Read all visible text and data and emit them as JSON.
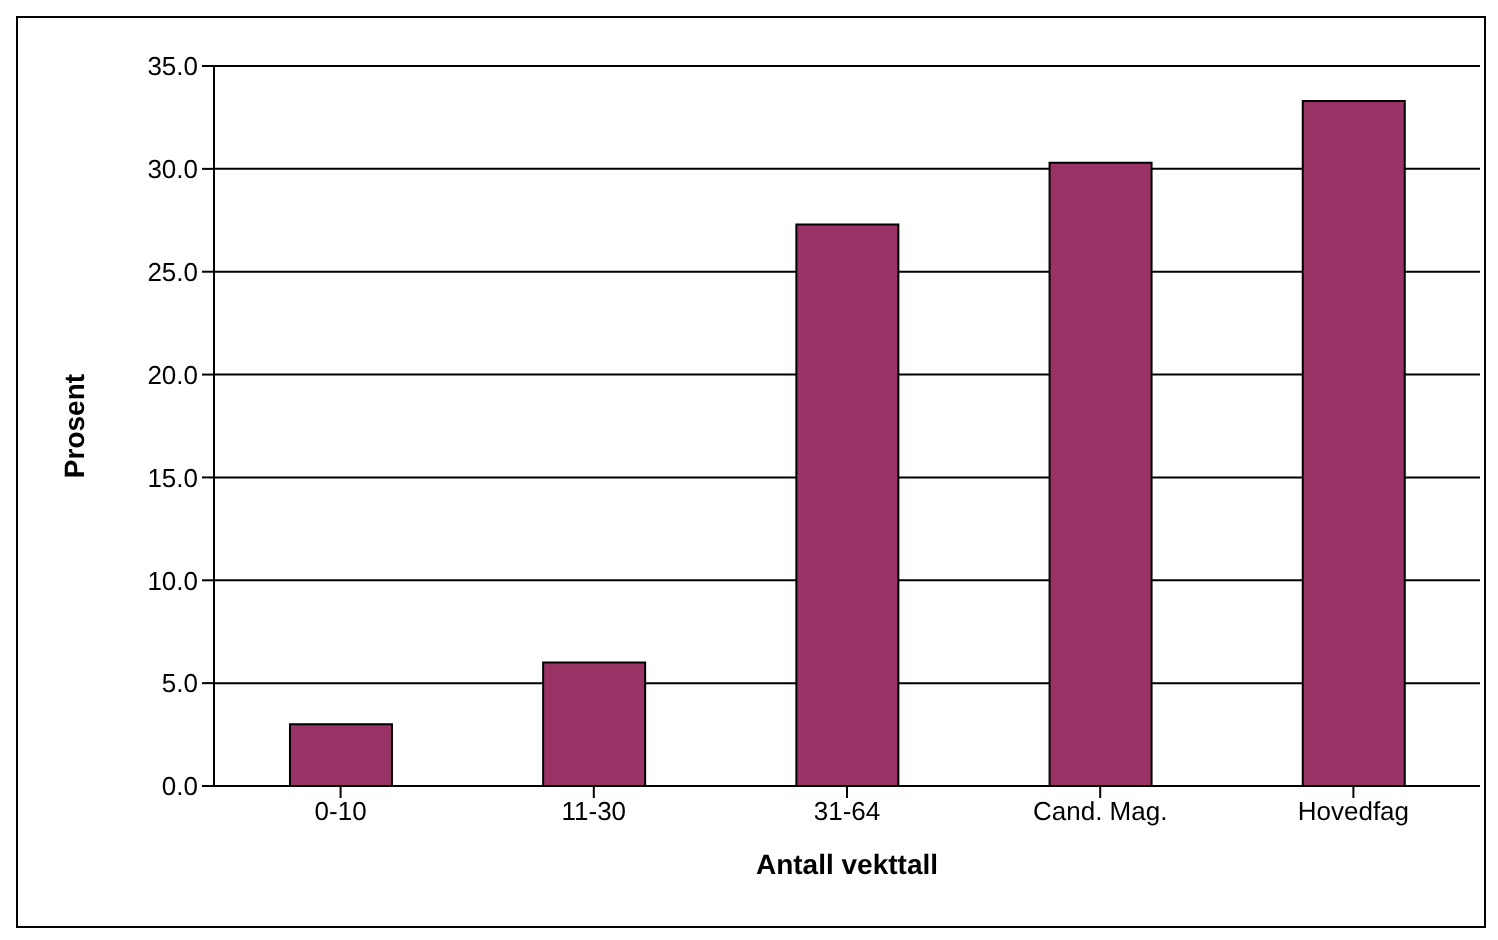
{
  "chart_data": {
    "type": "bar",
    "xlabel": "Antall vekttall",
    "ylabel": "Prosent",
    "categories": [
      "0-10",
      "11-30",
      "31-64",
      "Cand. Mag.",
      "Hovedfag"
    ],
    "values": [
      3.0,
      6.0,
      27.3,
      30.3,
      33.3
    ],
    "color": "#993366",
    "ylim": [
      0,
      35
    ],
    "yticks": [
      {
        "value": 0,
        "label": "0.0"
      },
      {
        "value": 5,
        "label": "5.0"
      },
      {
        "value": 10,
        "label": "10.0"
      },
      {
        "value": 15,
        "label": "15.0"
      },
      {
        "value": 20,
        "label": "20.0"
      },
      {
        "value": 25,
        "label": "25.0"
      },
      {
        "value": 30,
        "label": "30.0"
      },
      {
        "value": 35,
        "label": "35.0"
      }
    ],
    "grid": "y",
    "legend": false
  }
}
